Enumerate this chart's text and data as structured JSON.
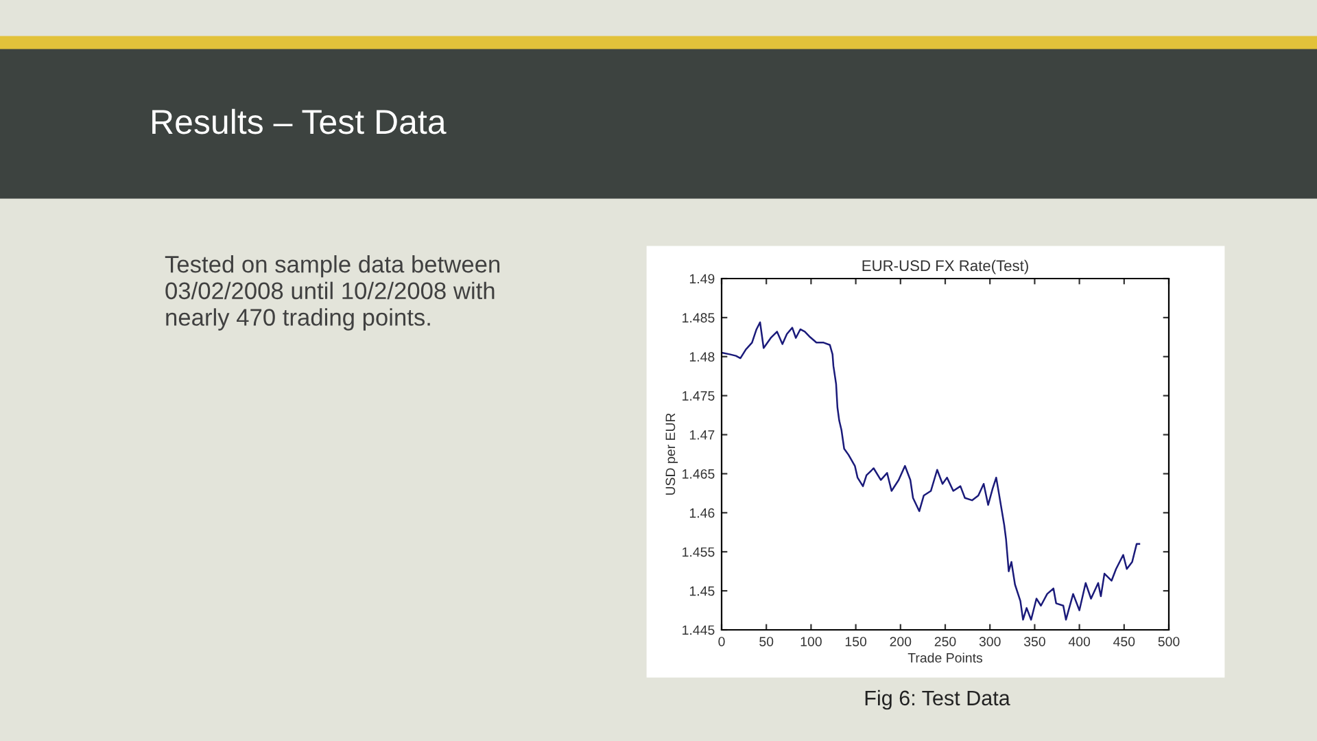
{
  "chart_data": {
    "type": "line",
    "title": "EUR-USD FX Rate(Test)",
    "xlabel": "Trade Points",
    "ylabel": "USD per EUR",
    "annotations": [
      "Results – Test Data",
      "Tested on sample data between\n03/02/2008 until 10/2/2008 with\nnearly 470 trading points.",
      "Fig 6: Test Data"
    ],
    "x": [
      0,
      9,
      16,
      21,
      27,
      34,
      39,
      43,
      47,
      55,
      62,
      68,
      73,
      79,
      83,
      88,
      93,
      98,
      106,
      114,
      121,
      124,
      125,
      128,
      129.5,
      131.5,
      134,
      137,
      142,
      149,
      152,
      158,
      162,
      170,
      178,
      185,
      190,
      198,
      205,
      211,
      214,
      221,
      226,
      234,
      241,
      247,
      252,
      259,
      267,
      272,
      280,
      287,
      293,
      298,
      303,
      307,
      310,
      316,
      318,
      321,
      324,
      328,
      334,
      337,
      341,
      346,
      352,
      357,
      364,
      371,
      374,
      382,
      385,
      393,
      400,
      407,
      413,
      421,
      424,
      428,
      436,
      441,
      449,
      453,
      459,
      464,
      467
    ],
    "series": [
      {
        "color": "#1a1a7a",
        "values": [
          1.4805,
          1.4803,
          1.4801,
          1.4798,
          1.4809,
          1.4818,
          1.4835,
          1.4844,
          1.4811,
          1.4824,
          1.4832,
          1.4816,
          1.4829,
          1.4837,
          1.4824,
          1.4835,
          1.4832,
          1.4826,
          1.4818,
          1.4818,
          1.4815,
          1.4803,
          1.4788,
          1.4765,
          1.4735,
          1.4718,
          1.4706,
          1.4682,
          1.4674,
          1.466,
          1.4645,
          1.4634,
          1.4648,
          1.4657,
          1.4642,
          1.4651,
          1.4628,
          1.4642,
          1.466,
          1.4642,
          1.4619,
          1.4602,
          1.4622,
          1.4628,
          1.4655,
          1.4637,
          1.4645,
          1.4628,
          1.4634,
          1.4619,
          1.4616,
          1.4622,
          1.4637,
          1.461,
          1.4631,
          1.4645,
          1.4625,
          1.4584,
          1.4566,
          1.4525,
          1.4537,
          1.4508,
          1.4487,
          1.4463,
          1.4478,
          1.4463,
          1.449,
          1.4481,
          1.4496,
          1.4503,
          1.4484,
          1.4481,
          1.4463,
          1.4496,
          1.4475,
          1.451,
          1.449,
          1.451,
          1.4493,
          1.4522,
          1.4513,
          1.4528,
          1.4546,
          1.4528,
          1.4537,
          1.456,
          1.456
        ]
      }
    ],
    "xlim": [
      0,
      500
    ],
    "xticks": [
      0,
      50,
      100,
      150,
      200,
      250,
      300,
      350,
      400,
      450,
      500
    ],
    "ylim": [
      1.445,
      1.49
    ],
    "yticks": [
      1.445,
      1.45,
      1.455,
      1.46,
      1.465,
      1.47,
      1.475,
      1.48,
      1.485,
      1.49
    ],
    "grid": false,
    "legend": false,
    "line_style": "solid",
    "marker": "none"
  }
}
